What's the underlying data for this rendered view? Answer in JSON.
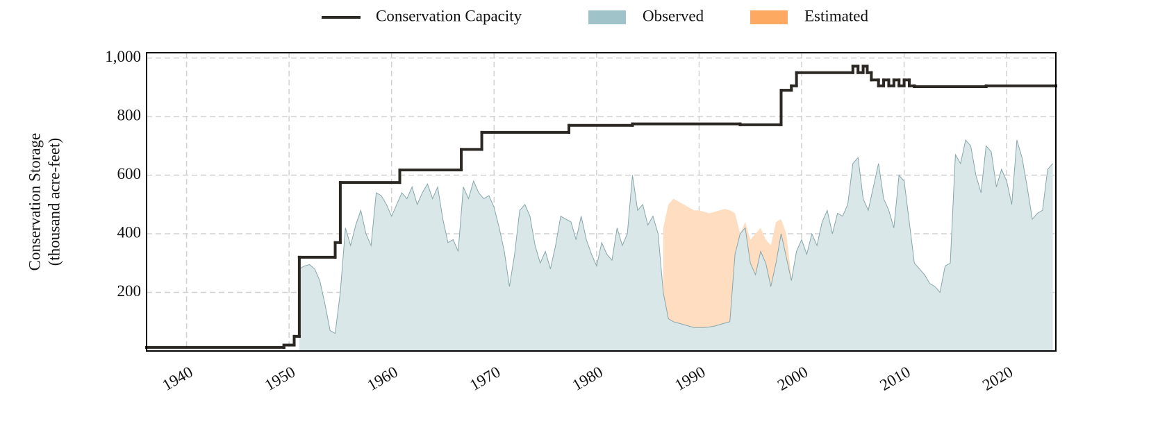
{
  "chart_data": {
    "type": "area",
    "ylabel": [
      "Conservation Storage",
      "(thousand acre-feet)"
    ],
    "xlim": [
      1936.1,
      2024.8
    ],
    "xticks": [
      1940,
      1950,
      1960,
      1970,
      1980,
      1990,
      2000,
      2010,
      2020
    ],
    "ylim": [
      0,
      1018
    ],
    "yticks": [
      200,
      400,
      600,
      800,
      {
        "value": 1000,
        "label": "1,000"
      }
    ],
    "grid": true,
    "legend": "top",
    "series": [
      {
        "name": "Conservation Capacity",
        "color": "#2b2722",
        "step": true,
        "x": [
          1936.1,
          1949.5,
          1950.5,
          1951.0,
          1954.5,
          1955.0,
          1960.8,
          1966.8,
          1968.8,
          1977.3,
          1983.5,
          1994.0,
          1998.0,
          1999.0,
          1999.5,
          2005.0,
          2005.5,
          2006.0,
          2006.4,
          2006.8,
          2007.5,
          2008.0,
          2008.5,
          2009.0,
          2009.5,
          2010.0,
          2010.5,
          2011.0,
          2018.0,
          2024.8
        ],
        "values": [
          12,
          20,
          50,
          320,
          370,
          575,
          618,
          688,
          746,
          770,
          775,
          772,
          890,
          905,
          950,
          972,
          950,
          972,
          950,
          925,
          905,
          925,
          905,
          925,
          905,
          925,
          905,
          902,
          905,
          905
        ]
      },
      {
        "name": "Estimated",
        "color": "#fda962",
        "x": [
          1986.5,
          1987.0,
          1987.5,
          1988.0,
          1988.5,
          1989.0,
          1989.5,
          1990.0,
          1990.5,
          1991.0,
          1991.5,
          1992.0,
          1992.5,
          1993.0,
          1993.5,
          1994.0,
          1994.5,
          1995.0,
          1995.5,
          1996.0,
          1996.5,
          1997.0,
          1997.5,
          1998.0,
          1998.5,
          1999.0
        ],
        "values": [
          420,
          500,
          520,
          510,
          500,
          490,
          480,
          480,
          475,
          470,
          475,
          480,
          485,
          480,
          470,
          400,
          440,
          380,
          400,
          420,
          380,
          360,
          440,
          450,
          400,
          250
        ]
      },
      {
        "name": "Observed",
        "color": "#9fc3c9",
        "x": [
          1951.0,
          1951.5,
          1952.0,
          1952.5,
          1953.0,
          1953.5,
          1954.0,
          1954.5,
          1955.0,
          1955.5,
          1956.0,
          1956.5,
          1957.0,
          1957.5,
          1958.0,
          1958.5,
          1959.0,
          1959.5,
          1960.0,
          1960.5,
          1961.0,
          1961.5,
          1962.0,
          1962.5,
          1963.0,
          1963.5,
          1964.0,
          1964.5,
          1965.0,
          1965.5,
          1966.0,
          1966.5,
          1967.0,
          1967.5,
          1968.0,
          1968.5,
          1969.0,
          1969.5,
          1970.0,
          1970.5,
          1971.0,
          1971.5,
          1972.0,
          1972.5,
          1973.0,
          1973.5,
          1974.0,
          1974.5,
          1975.0,
          1975.5,
          1976.0,
          1976.5,
          1977.0,
          1977.5,
          1978.0,
          1978.5,
          1979.0,
          1979.5,
          1980.0,
          1980.5,
          1981.0,
          1981.5,
          1982.0,
          1982.5,
          1983.0,
          1983.5,
          1984.0,
          1984.5,
          1985.0,
          1985.5,
          1986.0,
          1986.5,
          1987.0,
          1987.5,
          1988.0,
          1988.5,
          1989.0,
          1989.5,
          1990.0,
          1990.5,
          1991.0,
          1991.5,
          1992.0,
          1992.5,
          1993.0,
          1993.5,
          1994.0,
          1994.5,
          1995.0,
          1995.5,
          1996.0,
          1996.5,
          1997.0,
          1997.5,
          1998.0,
          1998.5,
          1999.0,
          1999.5,
          2000.0,
          2000.5,
          2001.0,
          2001.5,
          2002.0,
          2002.5,
          2003.0,
          2003.5,
          2004.0,
          2004.5,
          2005.0,
          2005.5,
          2006.0,
          2006.5,
          2007.0,
          2007.5,
          2008.0,
          2008.5,
          2009.0,
          2009.5,
          2010.0,
          2010.5,
          2011.0,
          2011.5,
          2012.0,
          2012.5,
          2013.0,
          2013.5,
          2014.0,
          2014.5,
          2015.0,
          2015.5,
          2016.0,
          2016.5,
          2017.0,
          2017.5,
          2018.0,
          2018.5,
          2019.0,
          2019.5,
          2020.0,
          2020.5,
          2021.0,
          2021.5,
          2022.0,
          2022.5,
          2023.0,
          2023.5,
          2024.0,
          2024.5
        ],
        "values": [
          280,
          290,
          295,
          280,
          240,
          160,
          70,
          60,
          200,
          420,
          360,
          430,
          480,
          400,
          360,
          540,
          530,
          500,
          460,
          500,
          540,
          520,
          560,
          500,
          540,
          570,
          520,
          560,
          450,
          370,
          380,
          340,
          560,
          520,
          580,
          540,
          520,
          530,
          490,
          420,
          340,
          220,
          330,
          480,
          500,
          460,
          360,
          300,
          340,
          280,
          360,
          460,
          450,
          440,
          380,
          460,
          380,
          330,
          290,
          370,
          330,
          310,
          420,
          360,
          400,
          600,
          480,
          500,
          430,
          460,
          400,
          200,
          110,
          100,
          95,
          90,
          85,
          80,
          80,
          80,
          82,
          85,
          90,
          95,
          100,
          330,
          400,
          420,
          300,
          260,
          340,
          300,
          220,
          300,
          400,
          320,
          240,
          340,
          380,
          330,
          400,
          360,
          440,
          480,
          400,
          470,
          460,
          500,
          640,
          660,
          520,
          480,
          560,
          640,
          520,
          480,
          420,
          600,
          580,
          440,
          300,
          280,
          260,
          230,
          220,
          200,
          290,
          300,
          670,
          640,
          720,
          700,
          600,
          540,
          700,
          680,
          560,
          620,
          580,
          500,
          720,
          660,
          560,
          450,
          470,
          480,
          620,
          640
        ]
      }
    ]
  }
}
